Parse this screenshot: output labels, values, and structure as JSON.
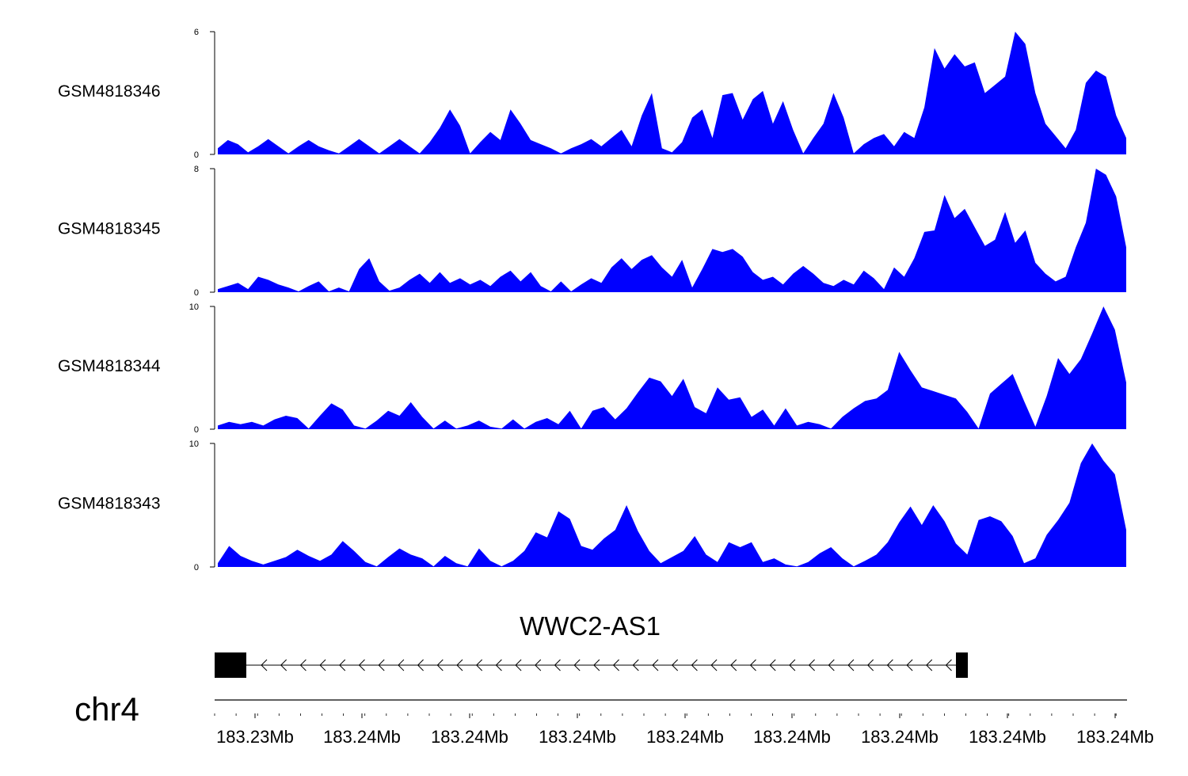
{
  "chart_data": {
    "type": "area",
    "fill_color": "#0000ff",
    "x_ticks": [
      "183.23Mb",
      "183.24Mb",
      "183.24Mb",
      "183.24Mb",
      "183.24Mb",
      "183.24Mb",
      "183.24Mb",
      "183.24Mb",
      "183.24Mb"
    ],
    "chromosome": "chr4",
    "gene": {
      "name": "WWC2-AS1",
      "strand": "-"
    },
    "tracks": [
      {
        "name": "GSM4818346",
        "ylim": [
          0,
          6
        ],
        "ymax_label": "6",
        "ymin_label": "0",
        "values": [
          0.3,
          0.7,
          0.5,
          0.1,
          0.4,
          0.75,
          0.4,
          0.05,
          0.4,
          0.7,
          0.4,
          0.2,
          0.05,
          0.4,
          0.75,
          0.4,
          0.05,
          0.4,
          0.75,
          0.4,
          0.05,
          0.6,
          1.3,
          2.2,
          1.4,
          0.05,
          0.6,
          1.1,
          0.7,
          2.2,
          1.5,
          0.7,
          0.5,
          0.3,
          0.05,
          0.3,
          0.5,
          0.75,
          0.4,
          0.8,
          1.2,
          0.4,
          1.9,
          3.0,
          0.3,
          0.1,
          0.6,
          1.8,
          2.2,
          0.8,
          2.9,
          3.0,
          1.7,
          2.7,
          3.1,
          1.5,
          2.6,
          1.2,
          0.05,
          0.8,
          1.5,
          3.0,
          1.8,
          0.05,
          0.5,
          0.8,
          1.0,
          0.4,
          1.1,
          0.8,
          2.3,
          5.2,
          4.2,
          4.9,
          4.3,
          4.5,
          3.0,
          3.4,
          3.8,
          6.0,
          5.4,
          3.0,
          1.5,
          0.9,
          0.3,
          1.2,
          3.5,
          4.1,
          3.8,
          1.9,
          0.8
        ]
      },
      {
        "name": "GSM4818345",
        "ylim": [
          0,
          8
        ],
        "ymax_label": "8",
        "ymin_label": "0",
        "values": [
          0.2,
          0.4,
          0.6,
          0.2,
          1.0,
          0.8,
          0.5,
          0.3,
          0.05,
          0.4,
          0.7,
          0.05,
          0.3,
          0.05,
          1.5,
          2.2,
          0.7,
          0.1,
          0.3,
          0.8,
          1.2,
          0.6,
          1.3,
          0.6,
          0.9,
          0.5,
          0.8,
          0.4,
          1.0,
          1.4,
          0.7,
          1.3,
          0.4,
          0.05,
          0.7,
          0.05,
          0.5,
          0.9,
          0.6,
          1.6,
          2.2,
          1.5,
          2.1,
          2.4,
          1.6,
          1.0,
          2.1,
          0.3,
          1.5,
          2.8,
          2.6,
          2.8,
          2.3,
          1.3,
          0.8,
          1.0,
          0.5,
          1.2,
          1.7,
          1.2,
          0.6,
          0.4,
          0.8,
          0.5,
          1.4,
          0.9,
          0.2,
          1.6,
          1.0,
          2.2,
          3.9,
          4.0,
          6.3,
          4.8,
          5.4,
          4.2,
          3.0,
          3.4,
          5.2,
          3.2,
          4.0,
          1.9,
          1.2,
          0.7,
          1.0,
          2.9,
          4.5,
          8.0,
          7.6,
          6.2,
          2.9
        ]
      },
      {
        "name": "GSM4818344",
        "ylim": [
          0,
          10
        ],
        "ymax_label": "10",
        "ymin_label": "0",
        "values": [
          0.3,
          0.6,
          0.4,
          0.6,
          0.3,
          0.8,
          1.1,
          0.9,
          0.05,
          1.1,
          2.1,
          1.6,
          0.3,
          0.05,
          0.7,
          1.5,
          1.1,
          2.2,
          1.0,
          0.05,
          0.7,
          0.05,
          0.3,
          0.7,
          0.2,
          0.05,
          0.8,
          0.05,
          0.6,
          0.9,
          0.4,
          1.5,
          0.05,
          1.5,
          1.8,
          0.8,
          1.7,
          3.0,
          4.2,
          3.9,
          2.7,
          4.1,
          1.8,
          1.3,
          3.4,
          2.4,
          2.6,
          1.0,
          1.6,
          0.3,
          1.7,
          0.3,
          0.6,
          0.4,
          0.05,
          1.0,
          1.7,
          2.3,
          2.5,
          3.2,
          6.3,
          4.8,
          3.4,
          3.1,
          2.8,
          2.5,
          1.4,
          0.05,
          2.9,
          3.7,
          4.5,
          2.3,
          0.2,
          2.7,
          5.8,
          4.5,
          5.7,
          7.8,
          10.0,
          8.1,
          3.8
        ]
      },
      {
        "name": "GSM4818343",
        "ylim": [
          0,
          10
        ],
        "ymax_label": "10",
        "ymin_label": "0",
        "values": [
          0.3,
          1.7,
          0.9,
          0.5,
          0.2,
          0.5,
          0.8,
          1.4,
          0.9,
          0.5,
          1.0,
          2.1,
          1.3,
          0.4,
          0.05,
          0.8,
          1.5,
          1.0,
          0.7,
          0.05,
          0.9,
          0.3,
          0.05,
          1.5,
          0.5,
          0.05,
          0.5,
          1.3,
          2.8,
          2.4,
          4.5,
          3.9,
          1.7,
          1.4,
          2.3,
          3.0,
          5.0,
          2.9,
          1.3,
          0.3,
          0.8,
          1.3,
          2.5,
          1.0,
          0.4,
          2.0,
          1.6,
          2.0,
          0.4,
          0.7,
          0.2,
          0.05,
          0.4,
          1.1,
          1.6,
          0.7,
          0.05,
          0.5,
          1.0,
          2.0,
          3.6,
          4.9,
          3.4,
          5.0,
          3.7,
          1.9,
          1.0,
          3.8,
          4.1,
          3.7,
          2.5,
          0.3,
          0.7,
          2.6,
          3.8,
          5.2,
          8.4,
          10.0,
          8.6,
          7.5,
          3.0
        ]
      }
    ]
  }
}
